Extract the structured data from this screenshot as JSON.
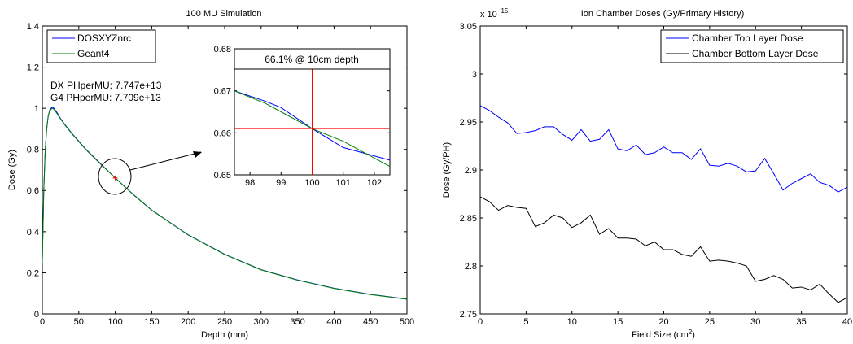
{
  "chart_data": [
    {
      "type": "line",
      "title": "100 MU Simulation",
      "xlabel": "Depth (mm)",
      "ylabel": "Dose (Gy)",
      "xlim": [
        0,
        500
      ],
      "ylim": [
        0,
        1.4
      ],
      "xticks": [
        0,
        50,
        100,
        150,
        200,
        250,
        300,
        350,
        400,
        450,
        500
      ],
      "yticks": [
        0,
        0.2,
        0.4,
        0.6,
        0.8,
        1,
        1.2,
        1.4
      ],
      "legend": {
        "placement": "top-left",
        "entries": [
          "DOSXYZnrc",
          "Geant4"
        ]
      },
      "annotations": [
        "DX PHperMU: 7.747e+13",
        "G4 PHperMU: 7.709e+13"
      ],
      "series": [
        {
          "name": "DOSXYZnrc",
          "color": "#0000ff",
          "x": [
            0,
            2,
            4,
            6,
            8,
            10,
            12,
            14,
            16,
            18,
            20,
            25,
            30,
            40,
            50,
            60,
            80,
            100,
            125,
            150,
            175,
            200,
            250,
            300,
            350,
            400,
            450,
            500
          ],
          "y": [
            0.25,
            0.6,
            0.8,
            0.9,
            0.96,
            0.99,
            1.0,
            1.005,
            1.0,
            0.99,
            0.98,
            0.95,
            0.925,
            0.88,
            0.84,
            0.8,
            0.73,
            0.661,
            0.58,
            0.505,
            0.445,
            0.385,
            0.29,
            0.215,
            0.165,
            0.125,
            0.095,
            0.072
          ]
        },
        {
          "name": "Geant4",
          "color": "#008000",
          "x": [
            0,
            2,
            4,
            6,
            8,
            10,
            12,
            14,
            16,
            18,
            20,
            25,
            30,
            40,
            50,
            60,
            80,
            100,
            125,
            150,
            175,
            200,
            250,
            300,
            350,
            400,
            450,
            500
          ],
          "y": [
            0.25,
            0.6,
            0.8,
            0.9,
            0.96,
            0.985,
            0.995,
            1.0,
            0.995,
            0.985,
            0.975,
            0.948,
            0.923,
            0.878,
            0.838,
            0.798,
            0.728,
            0.661,
            0.579,
            0.504,
            0.444,
            0.384,
            0.289,
            0.214,
            0.164,
            0.124,
            0.094,
            0.071
          ]
        }
      ],
      "marker": {
        "x": 100,
        "y": 0.661,
        "color": "#ff0000"
      }
    },
    {
      "type": "line",
      "title": "",
      "xlabel": "",
      "ylabel": "",
      "xlim": [
        97.5,
        102.5
      ],
      "ylim": [
        0.65,
        0.68
      ],
      "xticks": [
        98,
        99,
        100,
        101,
        102
      ],
      "yticks": [
        0.65,
        0.66,
        0.67,
        0.68
      ],
      "annotation": "66.1% @ 10cm depth",
      "crosshair": {
        "x": 100,
        "y": 0.661,
        "color": "#ff0000"
      },
      "series": [
        {
          "name": "DOSXYZnrc",
          "color": "#0000ff",
          "x": [
            97.5,
            98.5,
            99,
            100,
            101,
            102.5
          ],
          "y": [
            0.67,
            0.6675,
            0.666,
            0.661,
            0.6565,
            0.6535
          ]
        },
        {
          "name": "Geant4",
          "color": "#008000",
          "x": [
            97.5,
            98.5,
            99,
            100,
            101,
            102.5
          ],
          "y": [
            0.67,
            0.667,
            0.665,
            0.661,
            0.658,
            0.652
          ]
        }
      ]
    },
    {
      "type": "line",
      "title": "Ion Chamber Doses (Gy/Primary History)",
      "xlabel": "Field Size (cm",
      "xlabel_sup": "2",
      "xlabel_end": ")",
      "ylabel": "Dose (Gy/PH)",
      "y_exponent_base": "x 10",
      "y_exponent": "−15",
      "xlim": [
        0,
        40
      ],
      "ylim": [
        2.75,
        3.05
      ],
      "xticks": [
        0,
        5,
        10,
        15,
        20,
        25,
        30,
        35,
        40
      ],
      "yticks": [
        2.75,
        2.8,
        2.85,
        2.9,
        2.95,
        3,
        3.05
      ],
      "ytick_labels": [
        "2.75",
        "2.8",
        "2.85",
        "2.9",
        "2.95",
        "3",
        "3.05"
      ],
      "legend": {
        "placement": "top-right",
        "entries": [
          "Chamber Top Layer Dose",
          "Chamber Bottom Layer Dose"
        ]
      },
      "series": [
        {
          "name": "Chamber Top Layer Dose",
          "color": "#0000ff",
          "x": [
            0,
            1,
            2,
            3,
            4,
            5,
            6,
            7,
            8,
            9,
            10,
            11,
            12,
            13,
            14,
            15,
            16,
            17,
            18,
            19,
            20,
            21,
            22,
            23,
            24,
            25,
            26,
            27,
            28,
            29,
            30,
            31,
            32,
            33,
            34,
            35,
            36,
            37,
            38,
            39,
            40
          ],
          "y": [
            2.967,
            2.962,
            2.955,
            2.949,
            2.938,
            2.939,
            2.941,
            2.945,
            2.945,
            2.937,
            2.931,
            2.942,
            2.93,
            2.932,
            2.942,
            2.922,
            2.92,
            2.926,
            2.916,
            2.918,
            2.924,
            2.918,
            2.918,
            2.911,
            2.922,
            2.905,
            2.904,
            2.907,
            2.904,
            2.898,
            2.899,
            2.912,
            2.896,
            2.879,
            2.886,
            2.891,
            2.896,
            2.887,
            2.884,
            2.877,
            2.882
          ]
        },
        {
          "name": "Chamber Bottom Layer Dose",
          "color": "#000000",
          "x": [
            0,
            1,
            2,
            3,
            4,
            5,
            6,
            7,
            8,
            9,
            10,
            11,
            12,
            13,
            14,
            15,
            16,
            17,
            18,
            19,
            20,
            21,
            22,
            23,
            24,
            25,
            26,
            27,
            28,
            29,
            30,
            31,
            32,
            33,
            34,
            35,
            36,
            37,
            38,
            39,
            40
          ],
          "y": [
            2.872,
            2.867,
            2.858,
            2.863,
            2.861,
            2.86,
            2.841,
            2.845,
            2.853,
            2.85,
            2.84,
            2.845,
            2.853,
            2.833,
            2.839,
            2.829,
            2.829,
            2.828,
            2.821,
            2.825,
            2.817,
            2.817,
            2.812,
            2.81,
            2.82,
            2.805,
            2.806,
            2.805,
            2.803,
            2.8,
            2.784,
            2.786,
            2.79,
            2.786,
            2.777,
            2.778,
            2.775,
            2.781,
            2.771,
            2.762,
            2.767
          ]
        }
      ]
    }
  ]
}
